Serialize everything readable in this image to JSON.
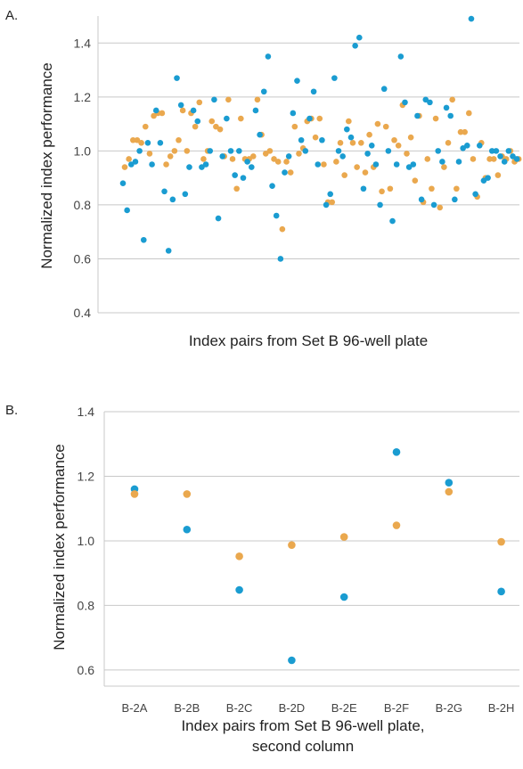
{
  "colors": {
    "blue": "#1a9cd1",
    "orange": "#eaa84e"
  },
  "chart_data": [
    {
      "type": "scatter",
      "panel_label": "A.",
      "title": "",
      "xlabel": "Index pairs from Set B 96-well plate",
      "ylabel": "Normalized index performance",
      "ylim": [
        0.4,
        1.5
      ],
      "yticks": [
        "0.4",
        "0.6",
        "0.8",
        "1.0",
        "1.2",
        "1.4"
      ],
      "grid": true,
      "n_points": 96,
      "series": [
        {
          "color": "blue",
          "values": [
            0.88,
            0.78,
            0.95,
            0.96,
            1.0,
            0.67,
            1.03,
            0.95,
            1.15,
            1.03,
            0.85,
            0.63,
            0.82,
            1.27,
            1.17,
            0.84,
            0.94,
            1.15,
            1.11,
            0.94,
            0.95,
            1.0,
            1.19,
            0.75,
            0.98,
            1.12,
            1.0,
            0.91,
            1.0,
            0.9,
            0.96,
            0.94,
            1.15,
            1.06,
            1.22,
            1.35,
            0.87,
            0.76,
            0.6,
            0.92,
            0.98,
            1.14,
            1.26,
            1.04,
            1.0,
            1.12,
            1.22,
            0.95,
            1.04,
            0.8,
            0.84,
            1.27,
            1.0,
            0.98,
            1.08,
            1.05,
            1.39,
            1.42,
            0.86,
            0.99,
            1.02,
            0.95,
            0.8,
            1.23,
            1.0,
            0.74,
            0.95,
            1.35,
            1.18,
            0.94,
            0.95,
            1.13,
            0.82,
            1.19,
            1.18,
            0.8,
            1.0,
            0.96,
            1.16,
            1.13,
            0.82,
            0.96,
            1.01,
            1.02,
            1.49,
            0.84,
            1.02,
            0.89,
            0.9,
            1.0,
            1.0,
            0.98,
            0.96,
            1.0,
            0.98,
            0.97
          ]
        },
        {
          "color": "orange",
          "values": [
            0.94,
            0.97,
            1.04,
            1.04,
            1.03,
            1.09,
            0.99,
            1.13,
            1.14,
            1.14,
            0.95,
            0.98,
            1.0,
            1.04,
            1.15,
            1.0,
            1.14,
            1.09,
            1.18,
            0.97,
            1.0,
            1.11,
            1.09,
            1.08,
            0.98,
            1.19,
            0.97,
            0.86,
            1.12,
            0.97,
            0.97,
            0.98,
            1.19,
            1.06,
            0.99,
            1.0,
            0.97,
            0.96,
            0.71,
            0.96,
            0.92,
            1.09,
            0.99,
            1.01,
            1.11,
            1.12,
            1.05,
            1.12,
            0.95,
            0.81,
            0.81,
            0.96,
            1.03,
            0.91,
            1.11,
            1.03,
            0.94,
            1.03,
            0.92,
            1.06,
            0.94,
            1.1,
            0.85,
            1.09,
            0.86,
            1.04,
            1.02,
            1.17,
            0.99,
            1.05,
            0.89,
            1.13,
            0.81,
            0.97,
            0.86,
            1.12,
            0.79,
            0.94,
            1.03,
            1.19,
            0.86,
            1.07,
            1.07,
            1.14,
            0.97,
            0.83,
            1.03,
            0.9,
            0.97,
            0.97,
            0.91,
            0.98,
            0.97,
            1.0,
            0.96,
            0.97
          ]
        }
      ]
    },
    {
      "type": "scatter",
      "panel_label": "B.",
      "title": "",
      "xlabel": "Index pairs from Set B 96-well plate,",
      "xlabel2": "second column",
      "ylabel": "Normalized index performance",
      "ylim": [
        0.55,
        1.4
      ],
      "yticks": [
        "0.6",
        "0.8",
        "1.0",
        "1.2",
        "1.4"
      ],
      "grid": true,
      "categories": [
        "B-2A",
        "B-2B",
        "B-2C",
        "B-2D",
        "B-2E",
        "B-2F",
        "B-2G",
        "B-2H"
      ],
      "series": [
        {
          "color": "blue",
          "values": [
            1.16,
            1.035,
            0.848,
            0.63,
            0.826,
            1.275,
            1.18,
            0.843
          ]
        },
        {
          "color": "orange",
          "values": [
            1.145,
            1.145,
            0.952,
            0.987,
            1.012,
            1.048,
            1.152,
            0.997
          ]
        }
      ]
    }
  ]
}
